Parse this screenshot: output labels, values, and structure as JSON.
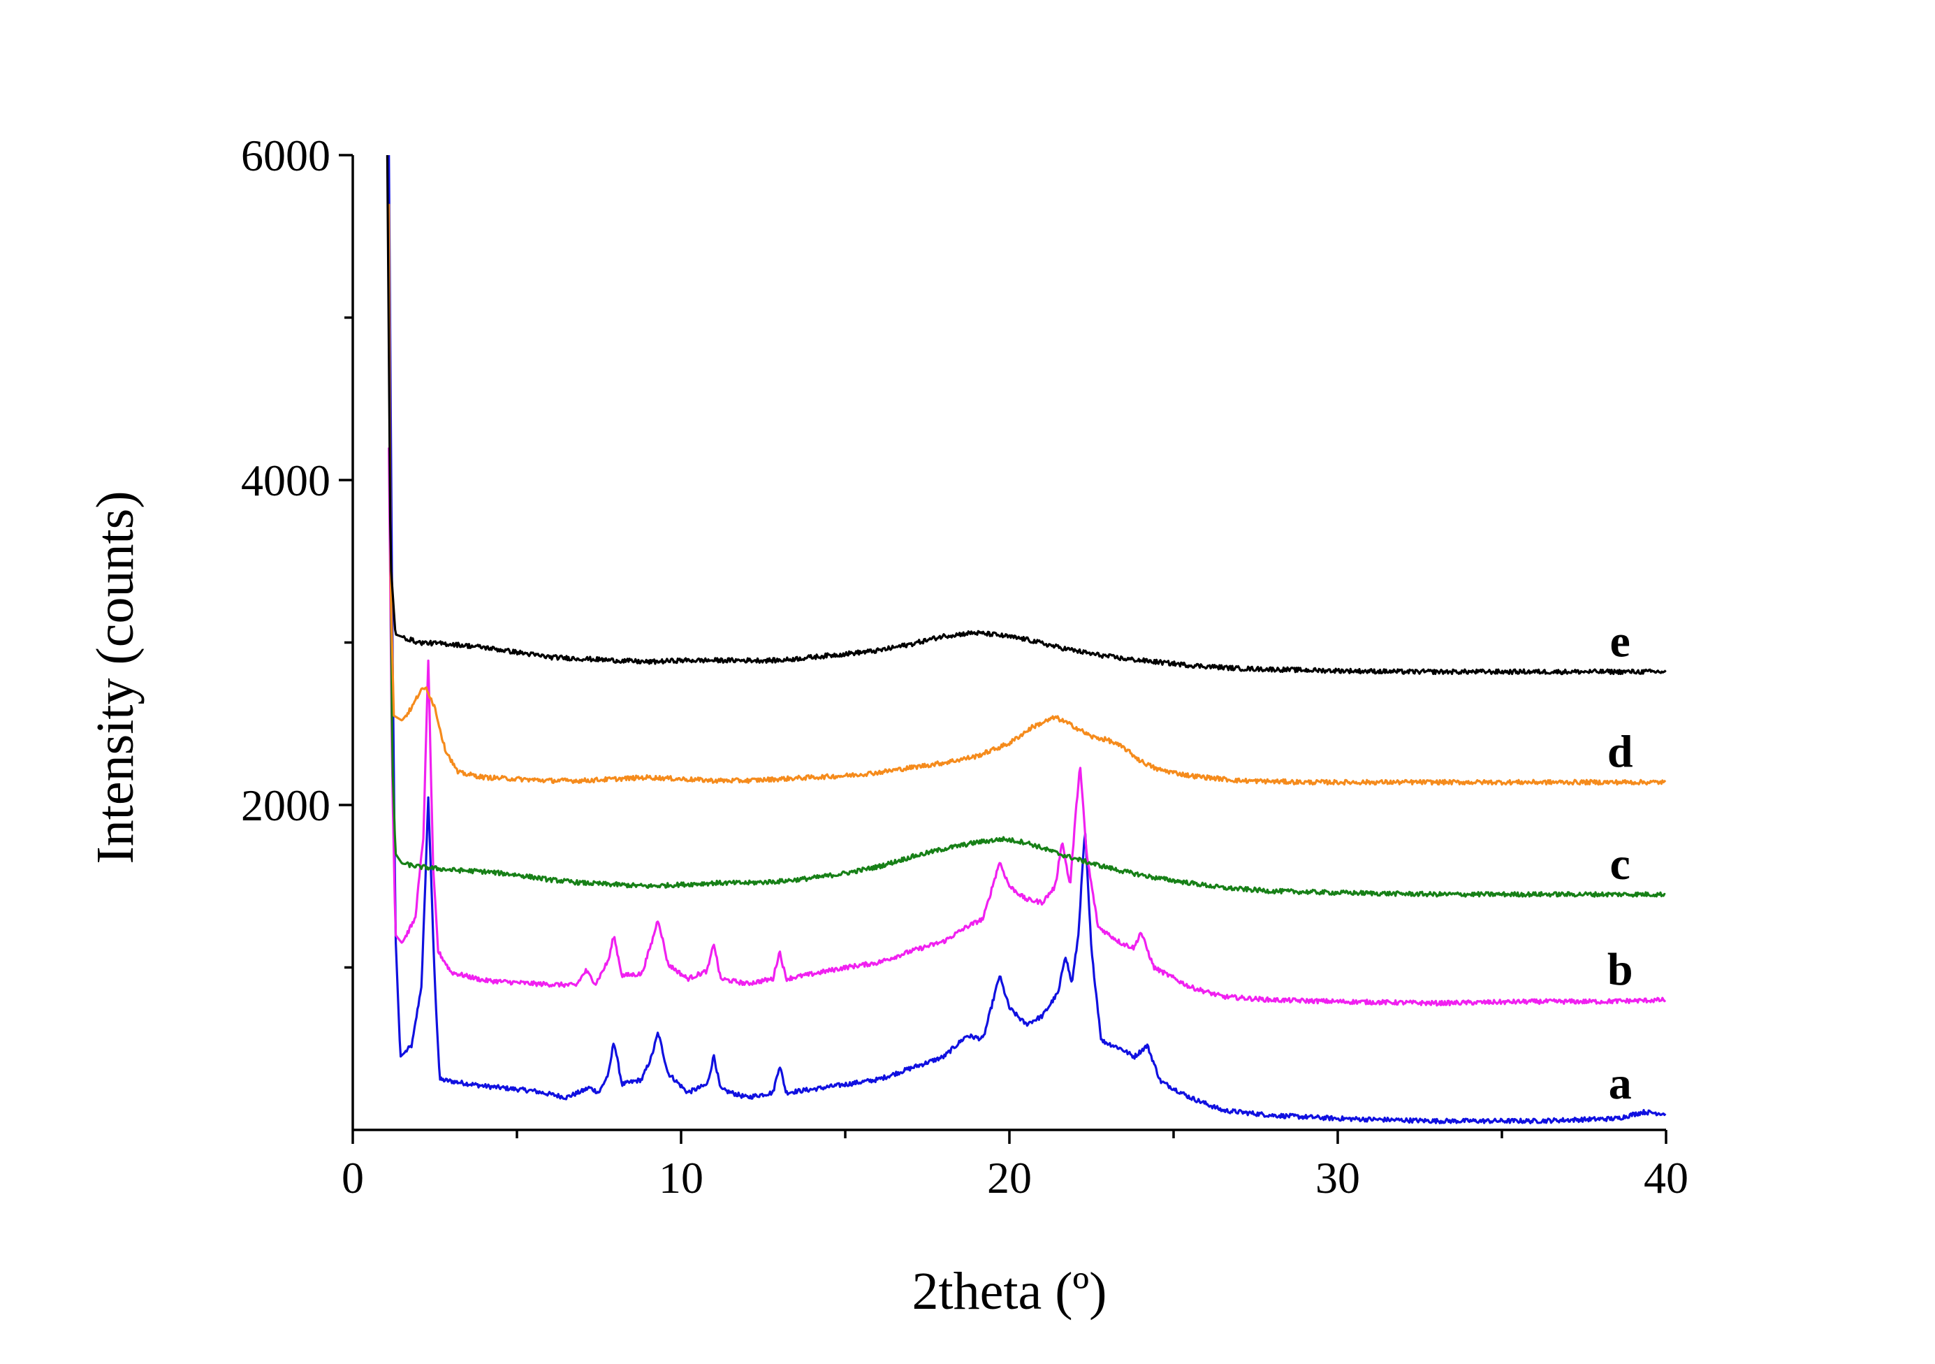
{
  "chart_data": {
    "type": "line",
    "title": "",
    "xlabel": "2theta (º)",
    "ylabel": "Intensity (counts)",
    "xlim": [
      0,
      40
    ],
    "ylim": [
      0,
      6000
    ],
    "xticks": [
      0,
      10,
      20,
      30,
      40
    ],
    "yticks_labeled": [
      2000,
      4000,
      6000
    ],
    "grid": false,
    "colors": {
      "a": "#1010e0",
      "b": "#f020f0",
      "c": "#178017",
      "d": "#f58b1c",
      "e": "#000000"
    },
    "series": [
      {
        "name": "a",
        "peaks_2theta": [
          2.3,
          7.1,
          7.9,
          9.3,
          11.0,
          13.0,
          18.7,
          19.7,
          21.7,
          22.3,
          23.4,
          24.2,
          25.5
        ],
        "points": [
          [
            1.1,
            6000
          ],
          [
            1.2,
            3200
          ],
          [
            1.3,
            1200
          ],
          [
            1.45,
            450
          ],
          [
            1.8,
            520
          ],
          [
            2.1,
            900
          ],
          [
            2.3,
            2050
          ],
          [
            2.5,
            900
          ],
          [
            2.65,
            310
          ],
          [
            4,
            270
          ],
          [
            5.5,
            240
          ],
          [
            6.5,
            200
          ],
          [
            7.0,
            240
          ],
          [
            7.2,
            260
          ],
          [
            7.5,
            230
          ],
          [
            7.8,
            350
          ],
          [
            7.95,
            550
          ],
          [
            8.2,
            280
          ],
          [
            8.8,
            310
          ],
          [
            9.1,
            450
          ],
          [
            9.3,
            600
          ],
          [
            9.6,
            350
          ],
          [
            10.2,
            230
          ],
          [
            10.8,
            280
          ],
          [
            11.0,
            460
          ],
          [
            11.2,
            250
          ],
          [
            12.0,
            200
          ],
          [
            12.8,
            230
          ],
          [
            13.0,
            400
          ],
          [
            13.2,
            230
          ],
          [
            14.0,
            250
          ],
          [
            15.0,
            280
          ],
          [
            16.0,
            310
          ],
          [
            17.0,
            380
          ],
          [
            18.0,
            450
          ],
          [
            18.7,
            580
          ],
          [
            19.2,
            560
          ],
          [
            19.7,
            950
          ],
          [
            20.0,
            750
          ],
          [
            20.5,
            650
          ],
          [
            21.0,
            700
          ],
          [
            21.5,
            850
          ],
          [
            21.7,
            1080
          ],
          [
            21.9,
            900
          ],
          [
            22.1,
            1200
          ],
          [
            22.3,
            1850
          ],
          [
            22.5,
            1100
          ],
          [
            22.8,
            550
          ],
          [
            23.4,
            500
          ],
          [
            23.8,
            450
          ],
          [
            24.2,
            520
          ],
          [
            24.6,
            300
          ],
          [
            25.5,
            200
          ],
          [
            26.5,
            120
          ],
          [
            28,
            90
          ],
          [
            30,
            70
          ],
          [
            33,
            55
          ],
          [
            36,
            55
          ],
          [
            38.5,
            70
          ],
          [
            39.3,
            110
          ],
          [
            40,
            100
          ]
        ]
      },
      {
        "name": "b",
        "peaks_2theta": [
          2.3,
          7.1,
          7.9,
          9.3,
          11.0,
          13.0,
          18.7,
          19.7,
          21.6,
          22.1,
          23.4,
          24.0
        ],
        "points": [
          [
            1.1,
            4200
          ],
          [
            1.2,
            2200
          ],
          [
            1.3,
            1200
          ],
          [
            1.5,
            1150
          ],
          [
            1.9,
            1300
          ],
          [
            2.15,
            1800
          ],
          [
            2.3,
            2900
          ],
          [
            2.45,
            1600
          ],
          [
            2.6,
            1100
          ],
          [
            3.0,
            970
          ],
          [
            4,
            920
          ],
          [
            5.5,
            900
          ],
          [
            6.8,
            890
          ],
          [
            7.1,
            980
          ],
          [
            7.4,
            900
          ],
          [
            7.8,
            1050
          ],
          [
            7.95,
            1200
          ],
          [
            8.2,
            950
          ],
          [
            8.8,
            960
          ],
          [
            9.1,
            1150
          ],
          [
            9.3,
            1300
          ],
          [
            9.6,
            1020
          ],
          [
            10.2,
            930
          ],
          [
            10.8,
            980
          ],
          [
            11.0,
            1150
          ],
          [
            11.2,
            930
          ],
          [
            12.0,
            900
          ],
          [
            12.8,
            930
          ],
          [
            13.0,
            1100
          ],
          [
            13.2,
            930
          ],
          [
            14.0,
            960
          ],
          [
            15.0,
            1000
          ],
          [
            16.0,
            1030
          ],
          [
            17.0,
            1100
          ],
          [
            18.0,
            1160
          ],
          [
            18.7,
            1250
          ],
          [
            19.2,
            1300
          ],
          [
            19.7,
            1650
          ],
          [
            20.0,
            1500
          ],
          [
            20.5,
            1420
          ],
          [
            21.0,
            1400
          ],
          [
            21.4,
            1500
          ],
          [
            21.6,
            1780
          ],
          [
            21.85,
            1500
          ],
          [
            22.0,
            1900
          ],
          [
            22.15,
            2250
          ],
          [
            22.35,
            1700
          ],
          [
            22.7,
            1250
          ],
          [
            23.4,
            1150
          ],
          [
            23.8,
            1120
          ],
          [
            24.0,
            1220
          ],
          [
            24.4,
            1000
          ],
          [
            25.5,
            880
          ],
          [
            26.5,
            820
          ],
          [
            28,
            800
          ],
          [
            30,
            790
          ],
          [
            33,
            780
          ],
          [
            36,
            790
          ],
          [
            38,
            790
          ],
          [
            40,
            800
          ]
        ]
      },
      {
        "name": "c",
        "peaks_2theta": [
          1.0,
          19.8
        ],
        "points": [
          [
            1.1,
            5000
          ],
          [
            1.2,
            2300
          ],
          [
            1.3,
            1700
          ],
          [
            1.5,
            1640
          ],
          [
            2.0,
            1620
          ],
          [
            3.0,
            1600
          ],
          [
            4.0,
            1590
          ],
          [
            5.0,
            1570
          ],
          [
            6.0,
            1540
          ],
          [
            7.0,
            1520
          ],
          [
            8.0,
            1510
          ],
          [
            9.0,
            1500
          ],
          [
            10.0,
            1510
          ],
          [
            11.0,
            1520
          ],
          [
            12.0,
            1520
          ],
          [
            13.0,
            1530
          ],
          [
            14.0,
            1550
          ],
          [
            15.0,
            1580
          ],
          [
            16.0,
            1620
          ],
          [
            17.0,
            1680
          ],
          [
            18.0,
            1730
          ],
          [
            19.0,
            1770
          ],
          [
            19.8,
            1790
          ],
          [
            20.5,
            1770
          ],
          [
            21.5,
            1700
          ],
          [
            22.5,
            1640
          ],
          [
            23.5,
            1590
          ],
          [
            24.5,
            1550
          ],
          [
            25.5,
            1520
          ],
          [
            26.5,
            1490
          ],
          [
            28,
            1470
          ],
          [
            30,
            1460
          ],
          [
            33,
            1450
          ],
          [
            36,
            1450
          ],
          [
            40,
            1450
          ]
        ]
      },
      {
        "name": "d",
        "peaks_2theta": [
          2.2,
          21.4
        ],
        "points": [
          [
            1.1,
            5700
          ],
          [
            1.15,
            3400
          ],
          [
            1.25,
            2550
          ],
          [
            1.5,
            2520
          ],
          [
            1.8,
            2600
          ],
          [
            2.05,
            2700
          ],
          [
            2.25,
            2720
          ],
          [
            2.5,
            2600
          ],
          [
            2.8,
            2350
          ],
          [
            3.2,
            2200
          ],
          [
            4.0,
            2170
          ],
          [
            5.0,
            2160
          ],
          [
            6.0,
            2150
          ],
          [
            7.0,
            2150
          ],
          [
            8.0,
            2160
          ],
          [
            9.0,
            2170
          ],
          [
            10.0,
            2160
          ],
          [
            11.0,
            2150
          ],
          [
            12.0,
            2150
          ],
          [
            13.0,
            2160
          ],
          [
            14.0,
            2170
          ],
          [
            15.0,
            2180
          ],
          [
            16.0,
            2200
          ],
          [
            17.0,
            2230
          ],
          [
            18.0,
            2260
          ],
          [
            19.0,
            2300
          ],
          [
            20.0,
            2380
          ],
          [
            20.7,
            2480
          ],
          [
            21.4,
            2540
          ],
          [
            22.0,
            2480
          ],
          [
            22.5,
            2420
          ],
          [
            23.0,
            2400
          ],
          [
            23.5,
            2350
          ],
          [
            24.0,
            2270
          ],
          [
            24.5,
            2220
          ],
          [
            25.5,
            2180
          ],
          [
            27,
            2150
          ],
          [
            29,
            2140
          ],
          [
            32,
            2140
          ],
          [
            36,
            2140
          ],
          [
            40,
            2140
          ]
        ]
      },
      {
        "name": "e",
        "peaks_2theta": [
          1.0,
          18.9
        ],
        "points": [
          [
            1.05,
            6000
          ],
          [
            1.15,
            3500
          ],
          [
            1.3,
            3050
          ],
          [
            2.0,
            3000
          ],
          [
            3.0,
            2990
          ],
          [
            4.0,
            2970
          ],
          [
            5.0,
            2940
          ],
          [
            6.0,
            2910
          ],
          [
            7.0,
            2900
          ],
          [
            8.0,
            2890
          ],
          [
            9.0,
            2880
          ],
          [
            10.0,
            2890
          ],
          [
            11.0,
            2890
          ],
          [
            12.0,
            2890
          ],
          [
            13.0,
            2890
          ],
          [
            14.0,
            2910
          ],
          [
            15.0,
            2930
          ],
          [
            16.0,
            2950
          ],
          [
            17.0,
            2990
          ],
          [
            18.0,
            3040
          ],
          [
            18.9,
            3060
          ],
          [
            19.5,
            3050
          ],
          [
            20.5,
            3020
          ],
          [
            21.5,
            2970
          ],
          [
            22.5,
            2930
          ],
          [
            23.5,
            2900
          ],
          [
            24.5,
            2880
          ],
          [
            25.5,
            2860
          ],
          [
            27,
            2840
          ],
          [
            29,
            2830
          ],
          [
            32,
            2820
          ],
          [
            36,
            2820
          ],
          [
            40,
            2820
          ]
        ]
      }
    ]
  }
}
